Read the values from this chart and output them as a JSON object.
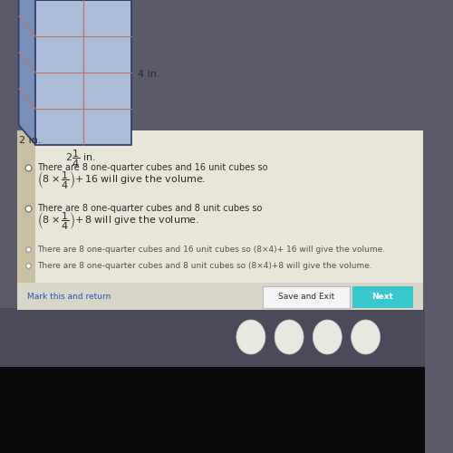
{
  "outer_bg": "#5a5a6a",
  "screen_bg": "#e8e6d8",
  "left_strip_color": "#c8c0a0",
  "prism": {
    "front_face_color": "#aabcd8",
    "side_face_color": "#7890b8",
    "top_face_color": "#c8d8f0",
    "edge_color": "#2a3a6a",
    "grid_color": "#c07060",
    "dim_4in_label": "4 in.",
    "dim_2in_label": "2 in.",
    "dim_2quarter_num": "2",
    "dim_2quarter_frac_num": "1",
    "dim_2quarter_frac_den": "4",
    "dim_2quarter_suffix": " in."
  },
  "option1_text": "There are 8 one-quarter cubes and 16 unit cubes so ",
  "option1_formula": "(8×¼)+ 16",
  "option2_text": "There are 8 one-quarter cubes and 8 unit cubes so ",
  "option2_formula": "(8×¼)+8",
  "option3_text": "There are 8 one-quarter cubes and 16 unit cubes so (8×4)+ 16 will give the volume.",
  "option4_text": "There are 8 one-quarter cubes and 8 unit cubes so (8×4)+8 will give the volume.",
  "will_give_volume": " will give the volume.",
  "save_exit_label": "Save and Exit",
  "next_label": "Next",
  "mark_label": "Mark this and return",
  "text_color": "#2a2a2a",
  "link_color": "#2255bb",
  "button_bg": "#f5f5f5",
  "next_button_bg": "#38c8cc",
  "taskbar_bg": "#4a4a5a",
  "black_bg": "#0a0a0a",
  "bottom_bar_bg": "#d8d6c8"
}
